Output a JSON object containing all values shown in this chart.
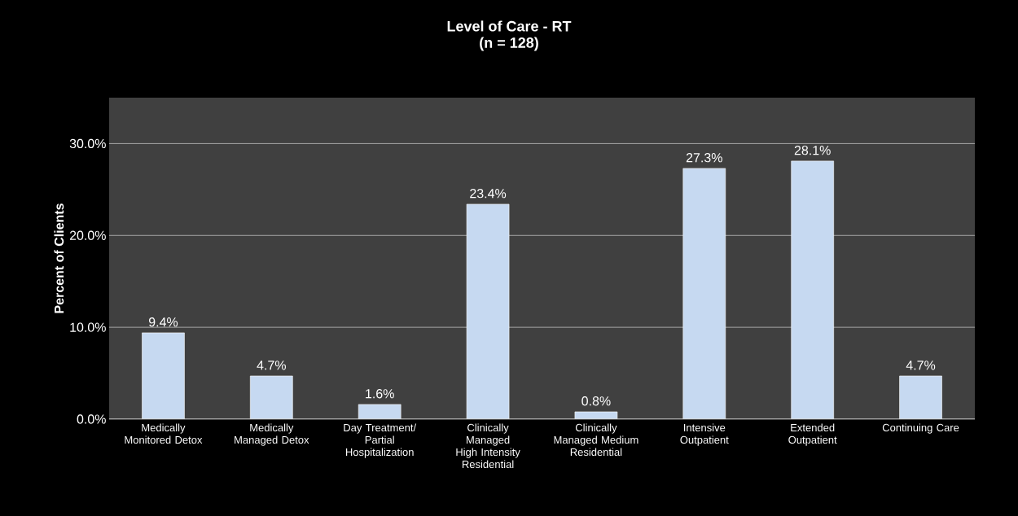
{
  "chart_data": {
    "type": "bar",
    "title": "Level of Care - RT",
    "subtitle": "(n = 128)",
    "ylabel": "Percent of Clients",
    "categories": [
      "Medically Monitored Detox",
      "Medically Managed Detox",
      "Day Treatment/ Partial Hospitalization",
      "Clinically Managed High Intensity Residential",
      "Clinically Managed Medium Residential",
      "Intensive Outpatient",
      "Extended Outpatient",
      "Continuing Care"
    ],
    "values": [
      9.4,
      4.7,
      1.6,
      23.4,
      0.8,
      27.3,
      28.1,
      4.7
    ],
    "value_labels": [
      "9.4%",
      "4.7%",
      "1.6%",
      "23.4%",
      "0.8%",
      "27.3%",
      "28.1%",
      "4.7%"
    ],
    "color": "#c6d9f1",
    "ylim": [
      0,
      35
    ],
    "yticks": [
      {
        "value": 0,
        "label": "0.0%"
      },
      {
        "value": 10,
        "label": "10.0%"
      },
      {
        "value": 20,
        "label": "20.0%"
      },
      {
        "value": 30,
        "label": "30.0%"
      }
    ],
    "grid": "y"
  }
}
